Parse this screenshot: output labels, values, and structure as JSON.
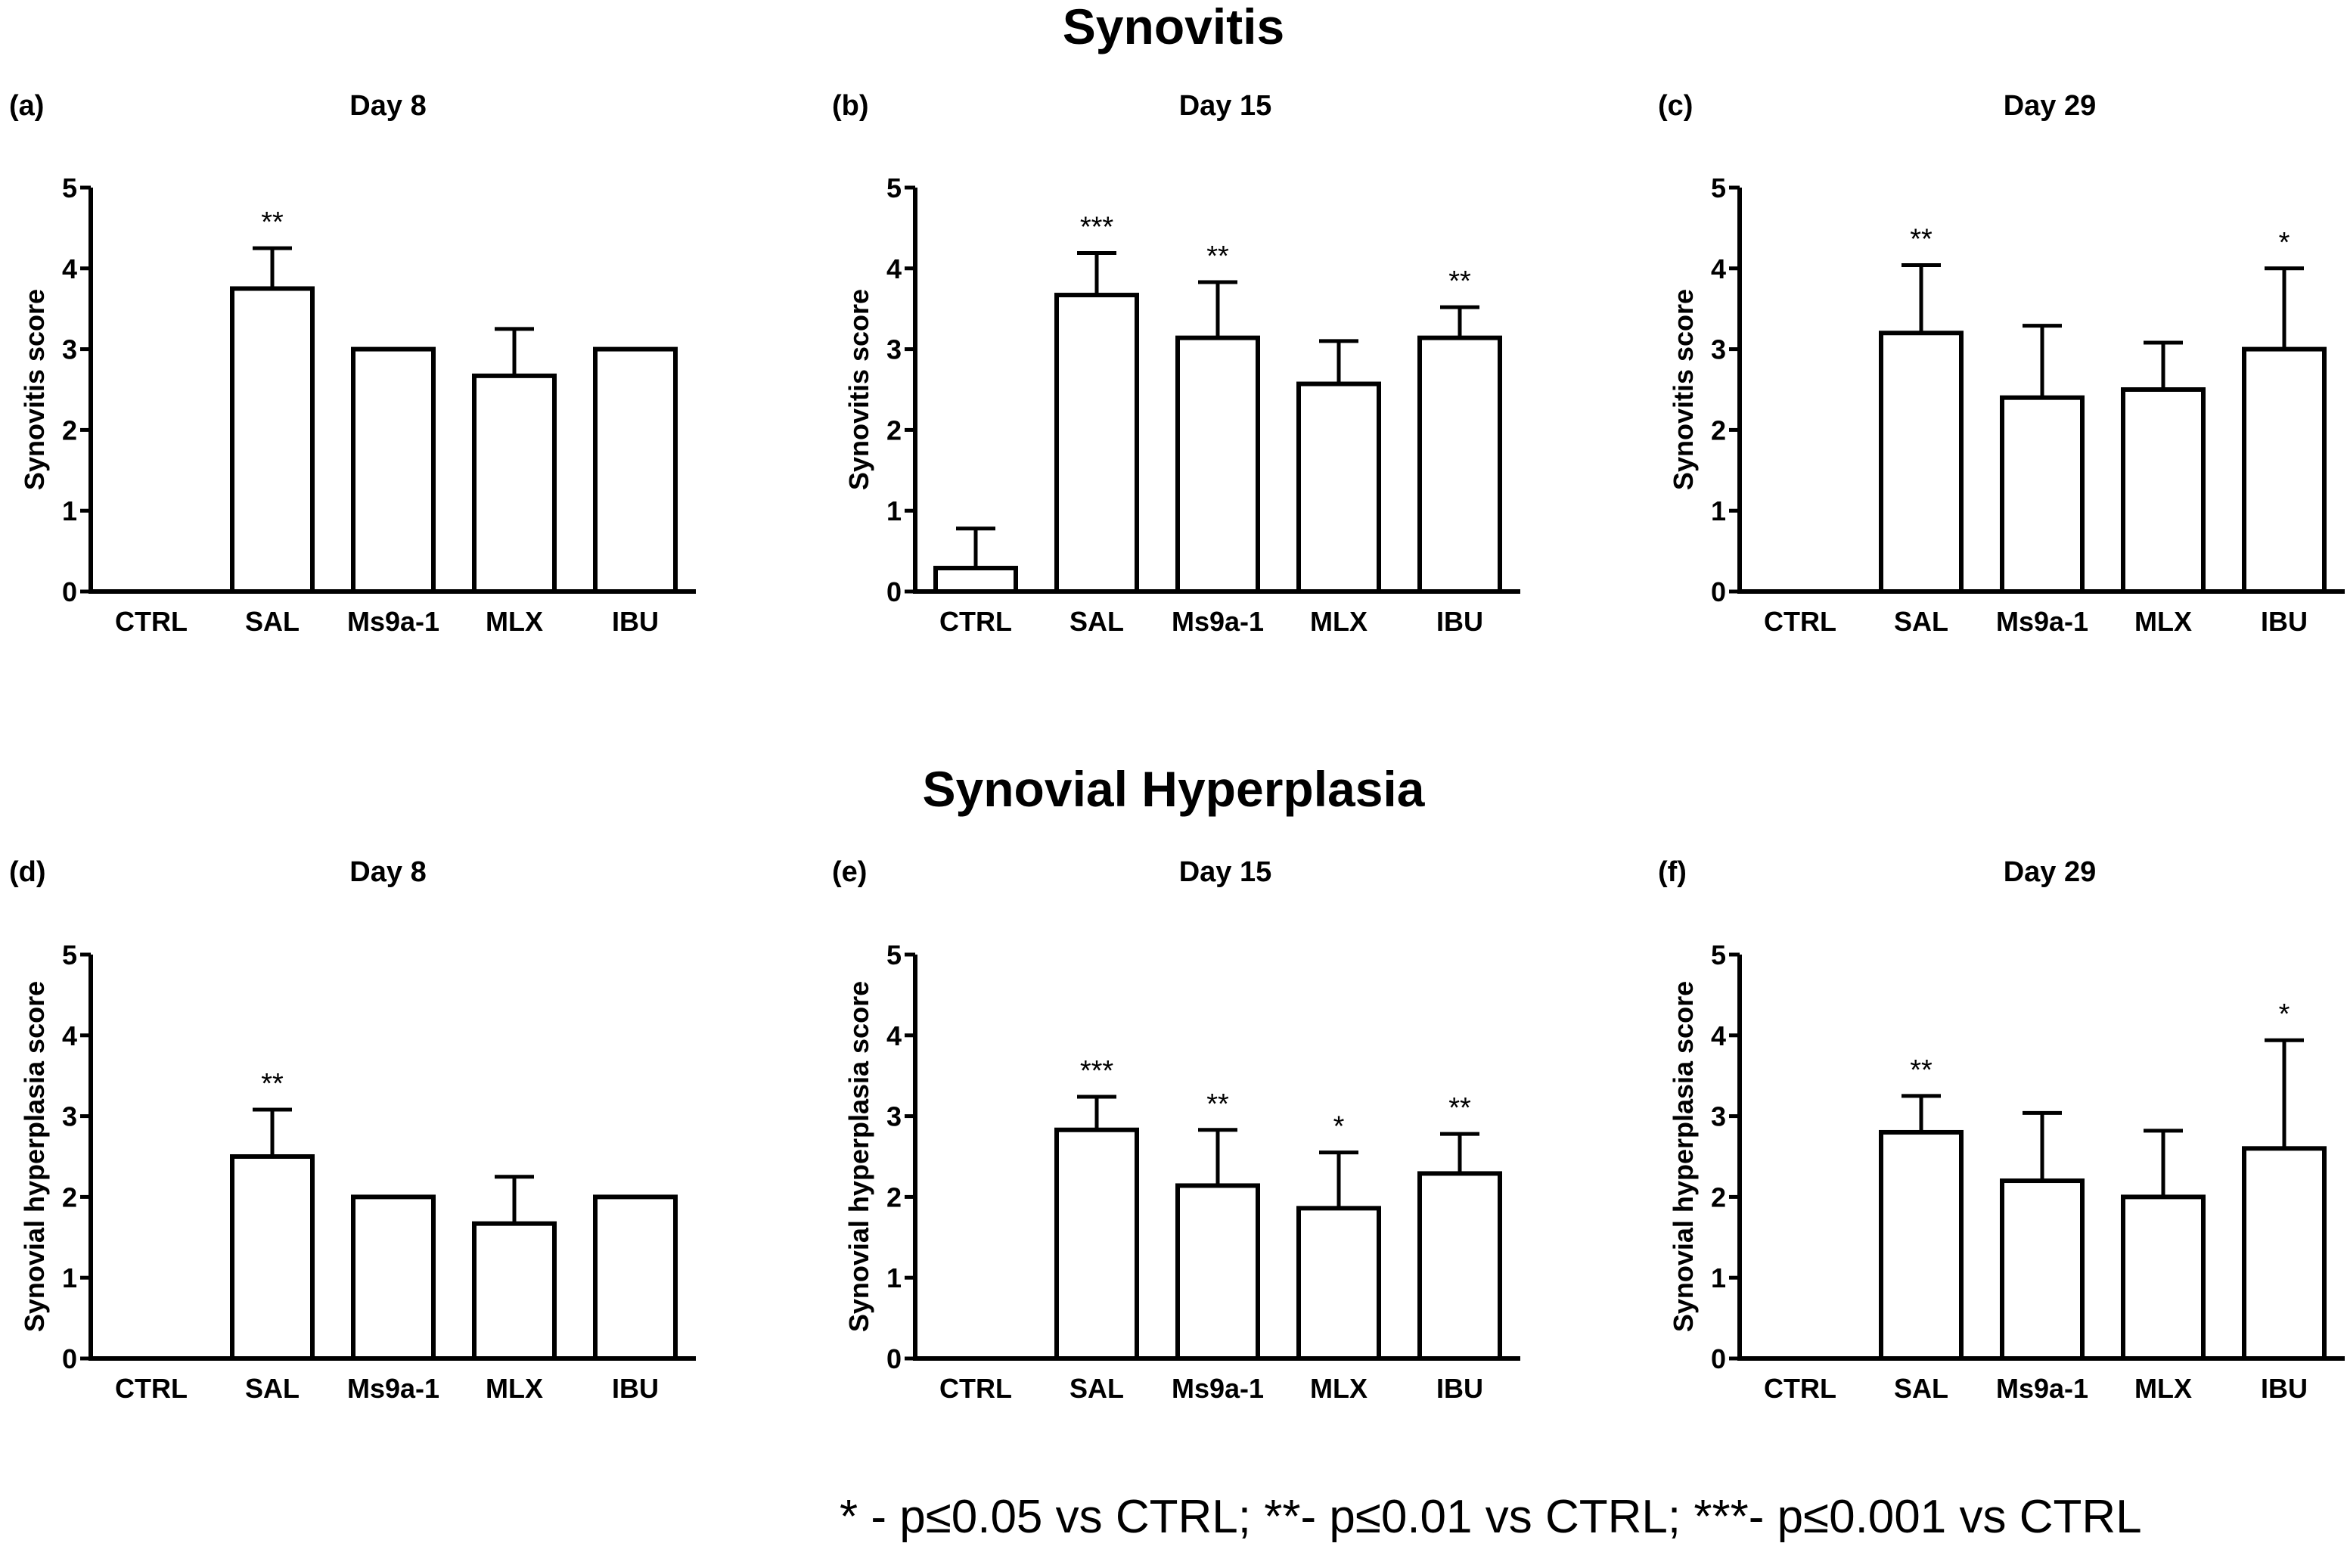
{
  "sections": {
    "top_title": "Synovitis",
    "bottom_title": "Synovial Hyperplasia"
  },
  "footnote": "* - p≤0.05 vs CTRL; **- p≤0.01 vs CTRL; ***- p≤0.001 vs CTRL",
  "colors": {
    "bar_fill": "#ffffff",
    "stroke": "#000000"
  },
  "chart_data": [
    {
      "type": "bar",
      "panel": "(a)",
      "title": "Day 8",
      "ylabel": "Synovitis score",
      "xlabel": "",
      "categories": [
        "CTRL",
        "SAL",
        "Ms9a-1",
        "MLX",
        "IBU"
      ],
      "values": [
        0,
        3.75,
        3.0,
        2.67,
        3.0
      ],
      "errors": [
        0,
        0.5,
        0,
        0.58,
        0
      ],
      "significance": [
        "",
        "**",
        "",
        "",
        ""
      ],
      "yticks": [
        "0",
        "1",
        "2",
        "3",
        "4",
        "5"
      ],
      "ylim": [
        0,
        5
      ]
    },
    {
      "type": "bar",
      "panel": "(b)",
      "title": "Day 15",
      "ylabel": "Synovitis score",
      "xlabel": "",
      "categories": [
        "CTRL",
        "SAL",
        "Ms9a-1",
        "MLX",
        "IBU"
      ],
      "values": [
        0.29,
        3.67,
        3.14,
        2.57,
        3.14
      ],
      "errors": [
        0.49,
        0.52,
        0.69,
        0.53,
        0.38
      ],
      "significance": [
        "",
        "***",
        "**",
        "",
        "**"
      ],
      "yticks": [
        "0",
        "1",
        "2",
        "3",
        "4",
        "5"
      ],
      "ylim": [
        0,
        5
      ]
    },
    {
      "type": "bar",
      "panel": "(c)",
      "title": "Day 29",
      "ylabel": "Synovitis score",
      "xlabel": "",
      "categories": [
        "CTRL",
        "SAL",
        "Ms9a-1",
        "MLX",
        "IBU"
      ],
      "values": [
        0,
        3.2,
        2.4,
        2.5,
        3.0
      ],
      "errors": [
        0,
        0.84,
        0.89,
        0.58,
        1.0
      ],
      "significance": [
        "",
        "**",
        "",
        "",
        "*"
      ],
      "yticks": [
        "0",
        "1",
        "2",
        "3",
        "4",
        "5"
      ],
      "ylim": [
        0,
        5
      ]
    },
    {
      "type": "bar",
      "panel": "(d)",
      "title": "Day 8",
      "ylabel": "Synovial hyperplasia score",
      "xlabel": "",
      "categories": [
        "CTRL",
        "SAL",
        "Ms9a-1",
        "MLX",
        "IBU"
      ],
      "values": [
        0,
        2.5,
        2.0,
        1.67,
        2.0
      ],
      "errors": [
        0,
        0.58,
        0,
        0.58,
        0
      ],
      "significance": [
        "",
        "**",
        "",
        "",
        ""
      ],
      "yticks": [
        "0",
        "1",
        "2",
        "3",
        "4",
        "5"
      ],
      "ylim": [
        0,
        5
      ]
    },
    {
      "type": "bar",
      "panel": "(e)",
      "title": "Day 15",
      "ylabel": "Synovial hyperplasia score",
      "xlabel": "",
      "categories": [
        "CTRL",
        "SAL",
        "Ms9a-1",
        "MLX",
        "IBU"
      ],
      "values": [
        0,
        2.83,
        2.14,
        1.86,
        2.29
      ],
      "errors": [
        0,
        0.41,
        0.69,
        0.69,
        0.49
      ],
      "significance": [
        "",
        "***",
        "**",
        "*",
        "**"
      ],
      "yticks": [
        "0",
        "1",
        "2",
        "3",
        "4",
        "5"
      ],
      "ylim": [
        0,
        5
      ]
    },
    {
      "type": "bar",
      "panel": "(f)",
      "title": "Day 29",
      "ylabel": "Synovial hyperplasia score",
      "xlabel": "",
      "categories": [
        "CTRL",
        "SAL",
        "Ms9a-1",
        "MLX",
        "IBU"
      ],
      "values": [
        0,
        2.8,
        2.2,
        2.0,
        2.6
      ],
      "errors": [
        0,
        0.45,
        0.84,
        0.82,
        1.34
      ],
      "significance": [
        "",
        "**",
        "",
        "",
        "*"
      ],
      "yticks": [
        "0",
        "1",
        "2",
        "3",
        "4",
        "5"
      ],
      "ylim": [
        0,
        5
      ]
    }
  ]
}
